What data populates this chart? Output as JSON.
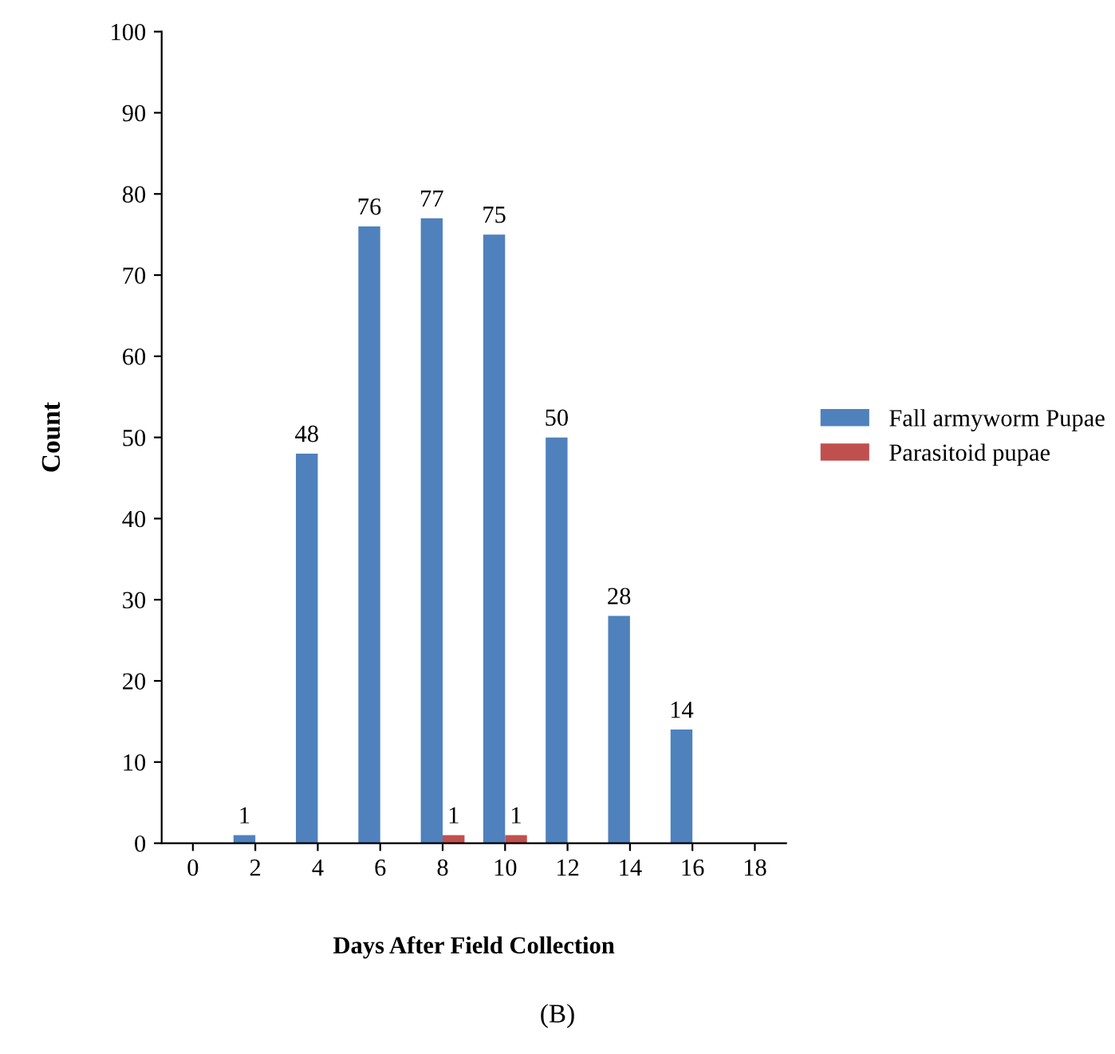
{
  "chart_data": {
    "type": "bar",
    "xlabel": "Days After Field Collection",
    "ylabel": "Count",
    "categories": [
      "0",
      "2",
      "4",
      "6",
      "8",
      "10",
      "12",
      "14",
      "16",
      "18"
    ],
    "series": [
      {
        "name": "Fall armyworm Pupae",
        "color": "#4f81bd",
        "values": [
          0,
          1,
          48,
          76,
          77,
          75,
          50,
          28,
          14,
          0
        ],
        "value_labels": [
          null,
          "1",
          "48",
          "76",
          "77",
          "75",
          "50",
          "28",
          "14",
          null
        ]
      },
      {
        "name": "Parasitoid pupae",
        "color": "#c0504d",
        "values": [
          0,
          0,
          0,
          0,
          1,
          1,
          0,
          0,
          0,
          0
        ],
        "value_labels": [
          null,
          null,
          null,
          null,
          "1",
          "1",
          null,
          null,
          null,
          null
        ]
      }
    ],
    "ylim": [
      0,
      100
    ],
    "yticks": [
      0,
      10,
      20,
      30,
      40,
      50,
      60,
      70,
      80,
      90,
      100
    ],
    "grid": false,
    "legend": "right",
    "annotations": [
      "(B)"
    ]
  }
}
